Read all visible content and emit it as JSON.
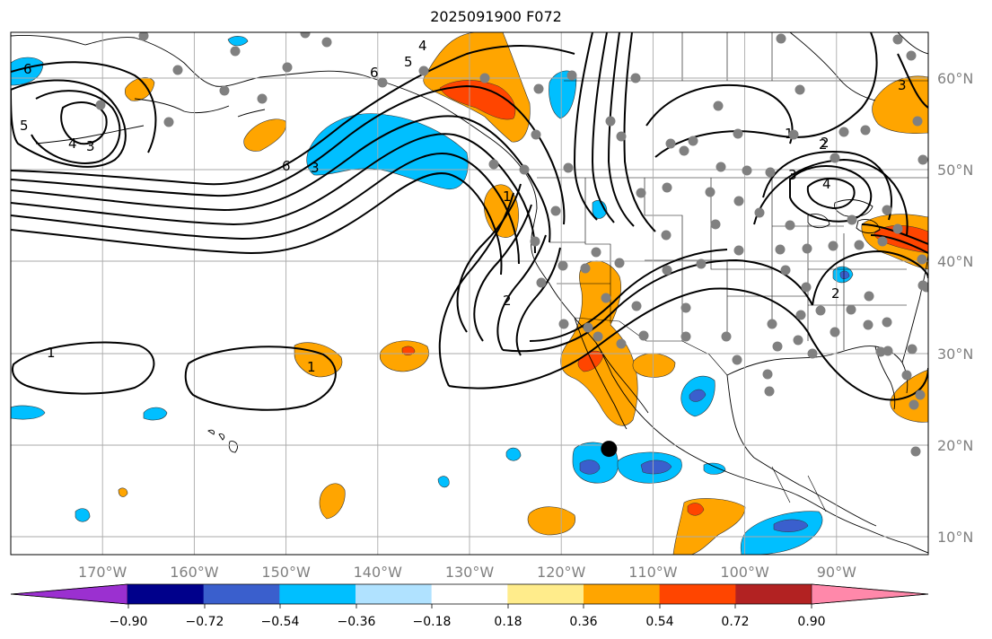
{
  "title": "2025091900 F072",
  "map": {
    "lon_range": [
      -180,
      -80
    ],
    "lat_range": [
      8,
      65
    ],
    "lon_ticks": [
      -170,
      -160,
      -150,
      -140,
      -130,
      -120,
      -110,
      -100,
      -90
    ],
    "lat_ticks": [
      10,
      20,
      30,
      40,
      50,
      60
    ],
    "lon_labels": [
      "170°W",
      "160°W",
      "150°W",
      "140°W",
      "130°W",
      "120°W",
      "110°W",
      "100°W",
      "90°W"
    ],
    "lat_labels": [
      "10°N",
      "20°N",
      "30°N",
      "40°N",
      "50°N",
      "60°N"
    ],
    "marker_location": {
      "lon": -114.8,
      "lat": 19.6
    }
  },
  "contour_labels": [
    "6",
    "5",
    "4",
    "3",
    "2",
    "1",
    "6",
    "5",
    "4",
    "3",
    "2",
    "1",
    "2",
    "3",
    "4",
    "2",
    "1",
    "1",
    "6",
    "3"
  ],
  "colorbar": {
    "ticks": [
      "−0.90",
      "−0.72",
      "−0.54",
      "−0.36",
      "−0.18",
      "0.18",
      "0.36",
      "0.54",
      "0.72",
      "0.90"
    ],
    "colors": [
      "#9b30d0",
      "#00008b",
      "#3a5fcd",
      "#00bfff",
      "#b0e2ff",
      "#ffffff",
      "#ffec8b",
      "#ffa500",
      "#ff4500",
      "#b22222",
      "#ff88aa"
    ]
  },
  "colors": {
    "grid": "#aaaaaa",
    "station": "#808080",
    "contour": "#000000"
  }
}
